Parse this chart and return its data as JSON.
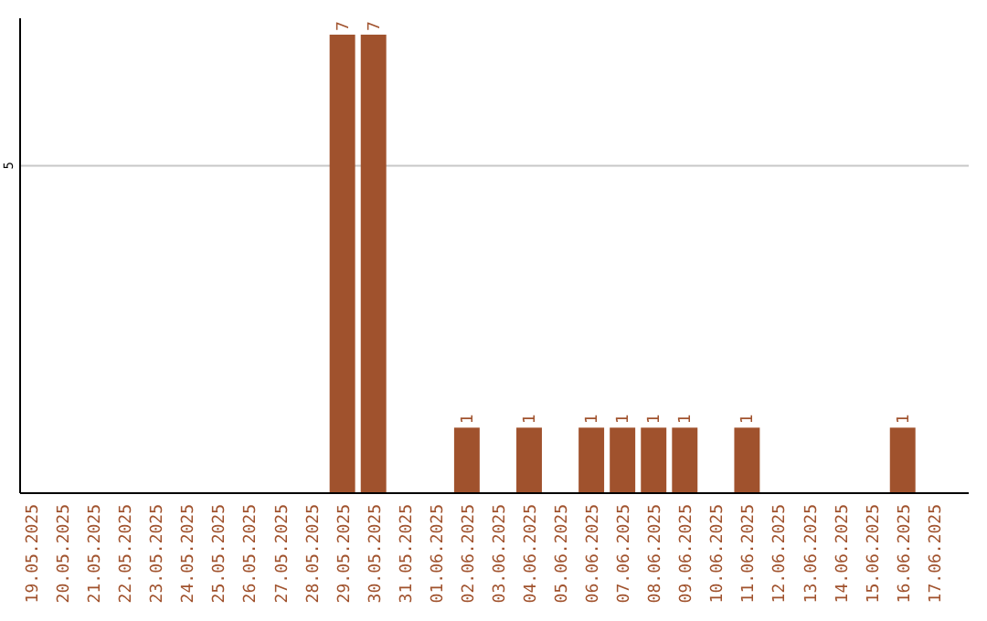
{
  "chart_data": {
    "type": "bar",
    "categories": [
      "19.05.2025",
      "20.05.2025",
      "21.05.2025",
      "22.05.2025",
      "23.05.2025",
      "24.05.2025",
      "25.05.2025",
      "26.05.2025",
      "27.05.2025",
      "28.05.2025",
      "29.05.2025",
      "30.05.2025",
      "31.05.2025",
      "01.06.2025",
      "02.06.2025",
      "03.06.2025",
      "04.06.2025",
      "05.06.2025",
      "06.06.2025",
      "07.06.2025",
      "08.06.2025",
      "09.06.2025",
      "10.06.2025",
      "11.06.2025",
      "12.06.2025",
      "13.06.2025",
      "14.06.2025",
      "15.06.2025",
      "16.06.2025",
      "17.06.2025"
    ],
    "values": [
      0,
      0,
      0,
      0,
      0,
      0,
      0,
      0,
      0,
      0,
      7,
      7,
      0,
      0,
      1,
      0,
      1,
      0,
      1,
      1,
      1,
      1,
      0,
      1,
      0,
      0,
      0,
      0,
      1,
      0
    ],
    "value_labels": [
      null,
      null,
      null,
      null,
      null,
      null,
      null,
      null,
      null,
      null,
      "7",
      "7",
      null,
      null,
      "1",
      null,
      "1",
      null,
      "1",
      "1",
      "1",
      "1",
      null,
      "1",
      null,
      null,
      null,
      null,
      "1",
      null
    ],
    "color": "#a0522d",
    "ylim": [
      0,
      7.25
    ],
    "yticks": [
      5
    ],
    "grid": "y"
  }
}
